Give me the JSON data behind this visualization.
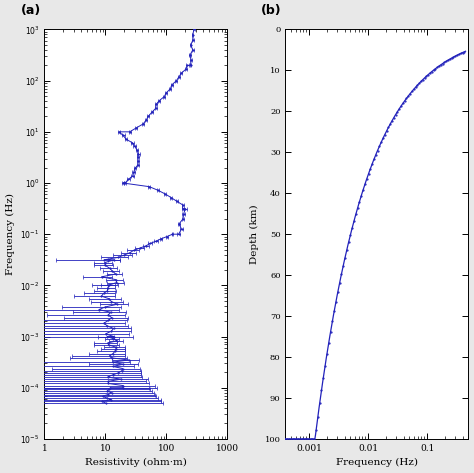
{
  "panel_a": {
    "label": "(a)",
    "xlabel": "Resistivity (ohm·m)",
    "ylabel": "Frequency (Hz)",
    "color": "#2222bb",
    "xlim": [
      1,
      1000
    ],
    "ylim": [
      1e-05,
      1000.0
    ]
  },
  "panel_b": {
    "label": "(b)",
    "xlabel": "Frequency (Hz)",
    "ylabel": "Depth (km)",
    "color": "#2222bb",
    "xlim": [
      0.0004,
      0.5
    ],
    "ylim": [
      0,
      100
    ]
  },
  "fig_bg": "#e8e8e8",
  "axes_bg": "#ffffff"
}
